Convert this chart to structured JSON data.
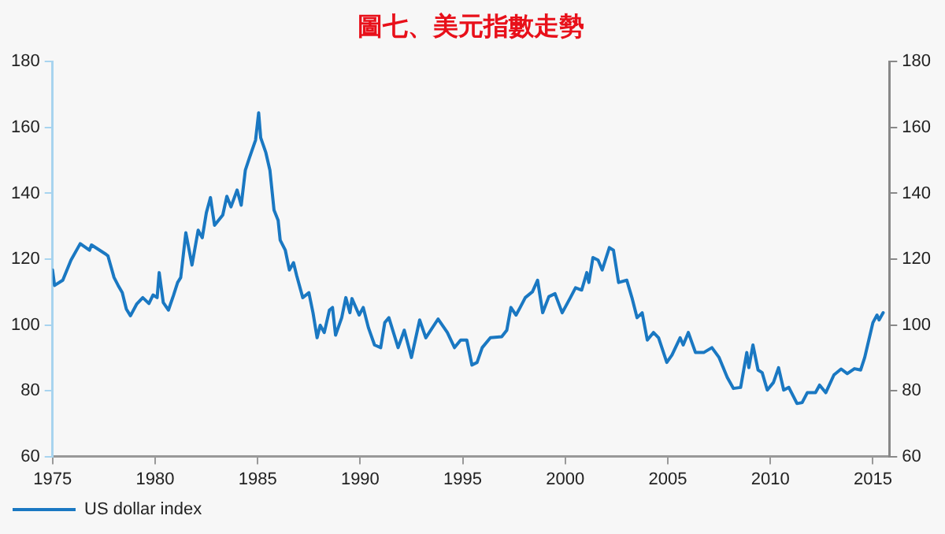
{
  "chart_data": {
    "type": "line",
    "title": "圖七、美元指數走勢",
    "xlim": [
      1975,
      2015.8
    ],
    "xticks": [
      1975,
      1980,
      1985,
      1990,
      1995,
      2000,
      2005,
      2010,
      2015
    ],
    "ylim": [
      60,
      180
    ],
    "yticks": [
      60,
      80,
      100,
      120,
      140,
      160,
      180
    ],
    "y2lim": [
      60,
      180
    ],
    "y2ticks": [
      60,
      80,
      100,
      120,
      140,
      160,
      180
    ],
    "grid": false,
    "legend": "bottom left",
    "marker": "none",
    "line_style": "solid",
    "series": [
      {
        "name": "US dollar index",
        "color": "#1a78c2",
        "x": [
          1975.0,
          1975.1,
          1975.5,
          1975.9,
          1976.35,
          1976.8,
          1976.9,
          1977.6,
          1977.7,
          1978.0,
          1978.2,
          1978.4,
          1978.6,
          1978.8,
          1979.1,
          1979.4,
          1979.7,
          1979.9,
          1980.1,
          1980.2,
          1980.4,
          1980.65,
          1980.9,
          1981.1,
          1981.25,
          1981.5,
          1981.8,
          1982.1,
          1982.3,
          1982.5,
          1982.7,
          1982.9,
          1983.3,
          1983.5,
          1983.7,
          1984.0,
          1984.2,
          1984.4,
          1984.6,
          1984.9,
          1985.05,
          1985.15,
          1985.4,
          1985.6,
          1985.8,
          1986.0,
          1986.1,
          1986.35,
          1986.55,
          1986.75,
          1986.9,
          1987.2,
          1987.5,
          1987.7,
          1987.9,
          1988.05,
          1988.25,
          1988.5,
          1988.65,
          1988.8,
          1989.1,
          1989.3,
          1989.5,
          1989.6,
          1989.95,
          1990.15,
          1990.4,
          1990.7,
          1991.0,
          1991.2,
          1991.4,
          1991.85,
          1992.15,
          1992.5,
          1992.9,
          1993.2,
          1993.8,
          1994.25,
          1994.6,
          1994.9,
          1995.2,
          1995.45,
          1995.7,
          1995.95,
          1996.35,
          1996.9,
          1997.15,
          1997.35,
          1997.6,
          1997.8,
          1998.05,
          1998.4,
          1998.65,
          1998.9,
          1999.2,
          1999.5,
          1999.85,
          2000.25,
          2000.5,
          2000.8,
          2001.05,
          2001.15,
          2001.35,
          2001.6,
          2001.8,
          2002.15,
          2002.35,
          2002.6,
          2003.0,
          2003.25,
          2003.5,
          2003.75,
          2004.0,
          2004.3,
          2004.55,
          2004.95,
          2005.2,
          2005.6,
          2005.75,
          2006.0,
          2006.35,
          2006.75,
          2007.15,
          2007.5,
          2007.9,
          2008.2,
          2008.55,
          2008.85,
          2008.95,
          2009.15,
          2009.4,
          2009.6,
          2009.85,
          2010.15,
          2010.4,
          2010.65,
          2010.9,
          2011.3,
          2011.55,
          2011.8,
          2012.2,
          2012.4,
          2012.7,
          2013.1,
          2013.45,
          2013.75,
          2014.1,
          2014.4,
          2014.6,
          2014.8,
          2015.0,
          2015.2,
          2015.3,
          2015.5
        ],
        "values": [
          116.7,
          112,
          113.6,
          119.7,
          124.7,
          122.7,
          124.3,
          121.5,
          121,
          114.4,
          112,
          109.8,
          104.8,
          102.8,
          106.3,
          108.3,
          106.5,
          109.1,
          108.3,
          115.9,
          106.8,
          104.5,
          109,
          112.9,
          114.4,
          128,
          118.2,
          128.8,
          126.5,
          134.1,
          138.7,
          130.3,
          133.4,
          139.1,
          135.9,
          141,
          136.4,
          147,
          150.8,
          156.2,
          164.5,
          156.9,
          152.4,
          147,
          134.9,
          131.8,
          125.8,
          122.7,
          116.7,
          118.9,
          115.1,
          108.3,
          109.8,
          103.7,
          96.1,
          99.9,
          97.7,
          104.5,
          105.3,
          96.9,
          102.2,
          108.3,
          103.7,
          108,
          103,
          105.3,
          99.2,
          93.9,
          93.1,
          100.7,
          102.2,
          93.1,
          98.4,
          90.1,
          101.5,
          96.1,
          101.8,
          97.7,
          93.1,
          95.4,
          95.4,
          87.8,
          88.6,
          93.1,
          96.1,
          96.4,
          98.4,
          105.3,
          103,
          105.3,
          108.3,
          110.1,
          113.6,
          103.7,
          108.6,
          109.5,
          103.7,
          108.3,
          111.3,
          110.6,
          115.9,
          112.9,
          120.5,
          119.7,
          116.7,
          123.5,
          122.7,
          112.9,
          113.6,
          108.3,
          102.2,
          103.7,
          95.4,
          97.7,
          96.1,
          88.6,
          90.8,
          96.1,
          93.9,
          97.7,
          91.6,
          91.6,
          93.1,
          90.1,
          84,
          80.7,
          81,
          91.6,
          87,
          93.9,
          86.3,
          85.5,
          80.2,
          82.5,
          87,
          80.2,
          81,
          76.1,
          76.4,
          79.4,
          79.4,
          81.7,
          79.4,
          84.8,
          86.6,
          85.2,
          86.7,
          86.3,
          90.1,
          95.4,
          100.7,
          103,
          101.5,
          103.7
        ]
      }
    ]
  }
}
